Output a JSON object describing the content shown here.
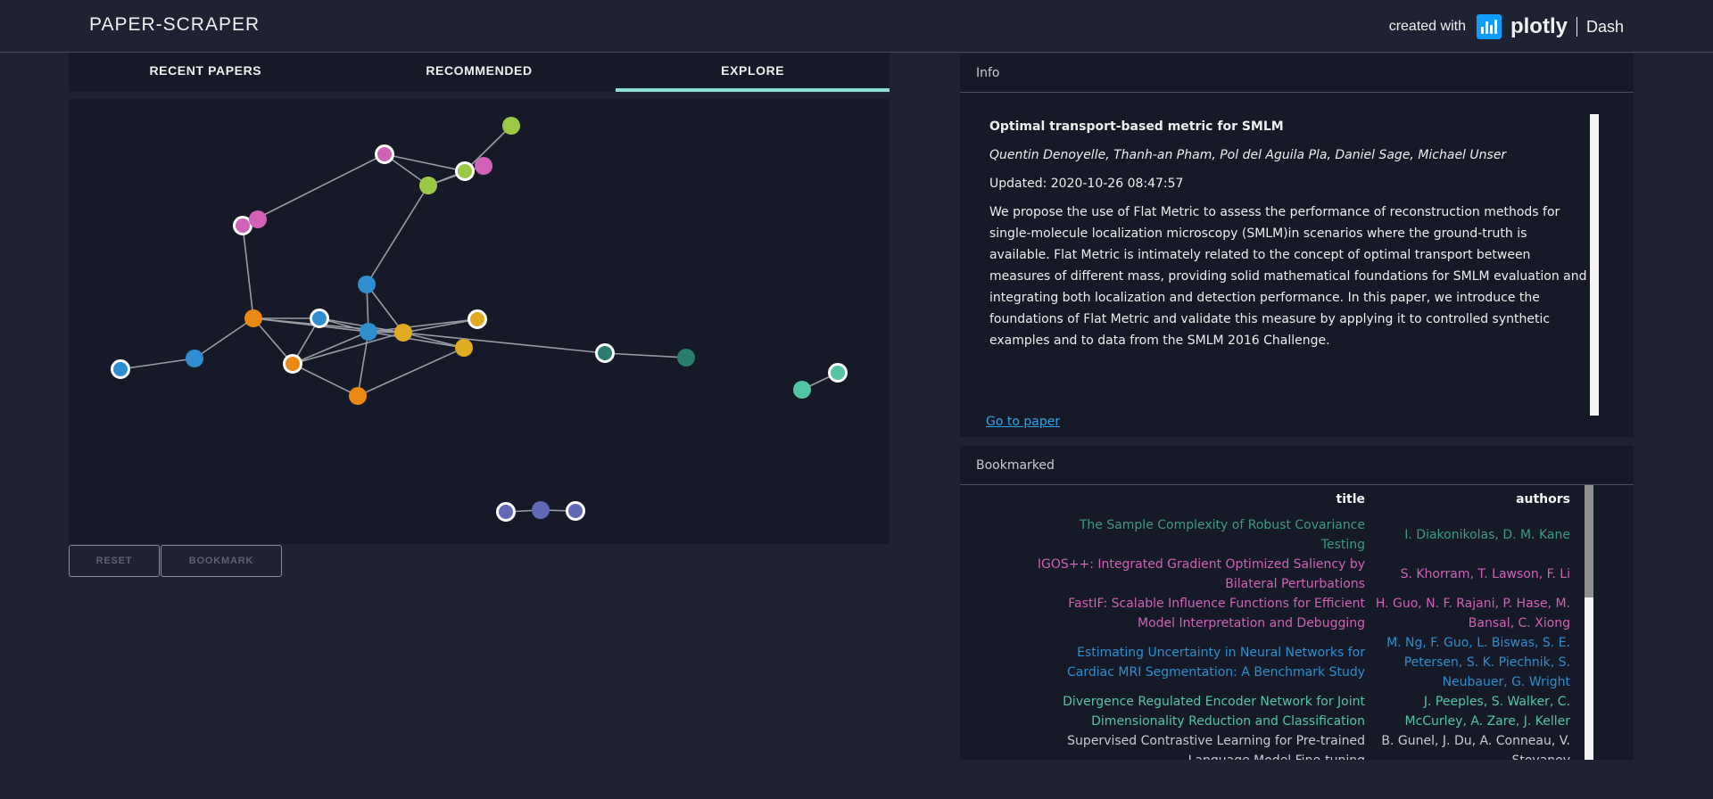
{
  "app": {
    "title": "PAPER-SCRAPER",
    "created_with": "created with",
    "plotly": "plotly",
    "dash": "Dash"
  },
  "tabs": [
    {
      "label": "RECENT PAPERS",
      "active": false
    },
    {
      "label": "RECOMMENDED",
      "active": false
    },
    {
      "label": "EXPLORE",
      "active": true
    }
  ],
  "buttons": {
    "reset": "RESET",
    "bookmark": "BOOKMARK"
  },
  "graph": {
    "colors": {
      "green": "#9bc945",
      "pink": "#d062b7",
      "blue": "#2f8ecf",
      "orange": "#ea8a14",
      "gold": "#e1ab21",
      "teal": "#287d6e",
      "mint": "#55c4a5",
      "indigo": "#6168b5"
    }
  },
  "info": {
    "header": "Info",
    "title": "Optimal transport-based metric for SMLM",
    "authors": "Quentin Denoyelle, Thanh-an Pham, Pol del Aguila Pla, Daniel Sage, Michael Unser",
    "updated": "Updated: 2020-10-26 08:47:57",
    "abstract": "We propose the use of Flat Metric to assess the performance of reconstruction methods for single-molecule localization microscopy (SMLM)in scenarios where the ground-truth is available. Flat Metric is intimately related to the concept of optimal transport between measures of different mass, providing solid mathematical foundations for SMLM evaluation and integrating both localization and detection performance. In this paper, we introduce the foundations of Flat Metric and validate this measure by applying it to controlled synthetic examples and to data from the SMLM 2016 Challenge.",
    "link": "Go to paper"
  },
  "bookmarked": {
    "header": "Bookmarked",
    "columns": {
      "title": "title",
      "authors": "authors"
    },
    "rows": [
      {
        "title": "The Sample Complexity of Robust Covariance Testing",
        "authors": "I. Diakonikolas, D. M. Kane",
        "color": "#3d9b83"
      },
      {
        "title": "IGOS++: Integrated Gradient Optimized Saliency by Bilateral Perturbations",
        "authors": "S. Khorram, T. Lawson, F. Li",
        "color": "#d062b7"
      },
      {
        "title": "FastIF: Scalable Influence Functions for Efficient Model Interpretation and Debugging",
        "authors": "H. Guo, N. F. Rajani, P. Hase, M. Bansal, C. Xiong",
        "color": "#d062b7"
      },
      {
        "title": "Estimating Uncertainty in Neural Networks for Cardiac MRI Segmentation: A Benchmark Study",
        "authors": "M. Ng, F. Guo, L. Biswas, S. E. Petersen, S. K. Piechnik, S. Neubauer, G. Wright",
        "color": "#2f8ecf"
      },
      {
        "title": "Divergence Regulated Encoder Network for Joint Dimensionality Reduction and Classification",
        "authors": "J. Peeples, S. Walker, C. McCurley, A. Zare, J. Keller",
        "color": "#55c4a5"
      },
      {
        "title": "Supervised Contrastive Learning for Pre-trained Language Model Fine-tuning",
        "authors": "B. Gunel, J. Du, A. Conneau, V. Stoyanov",
        "color": "#c9cbd3"
      }
    ]
  }
}
